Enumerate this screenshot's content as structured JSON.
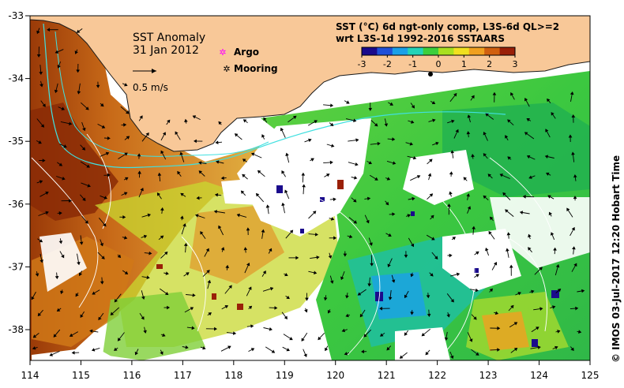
{
  "map": {
    "title": "SST Anomaly",
    "date": "31 Jan 2012",
    "velocity_scale_label": "0.5 m/s",
    "legend": {
      "argo_label": "Argo",
      "mooring_label": "Mooring"
    },
    "product_line1": "SST (°C) 6d ngt-only comp, L3S-6d QL>=2",
    "product_line2": "wrt L3S-1d 1992-2016 SSTAARS",
    "colorbar_ticks": [
      "-3",
      "-2",
      "-1",
      "0",
      "1",
      "2",
      "3"
    ],
    "colorbar_colors": [
      "#1a0a8c",
      "#1f4fd8",
      "#1aa0e8",
      "#23d3b8",
      "#3ccf3c",
      "#a8e020",
      "#f0e020",
      "#f0a020",
      "#d06010",
      "#9a2008"
    ],
    "x_ticks": [
      "114",
      "115",
      "116",
      "117",
      "118",
      "119",
      "120",
      "121",
      "122",
      "123",
      "124",
      "125"
    ],
    "y_ticks": [
      "-33",
      "-34",
      "-35",
      "-36",
      "-37",
      "-38"
    ],
    "credit": "©  IMOS 03-Jul-2017 12:20 Hobart Time",
    "land_color": "#f8c898",
    "coast_current_color": "#40e0e0"
  }
}
